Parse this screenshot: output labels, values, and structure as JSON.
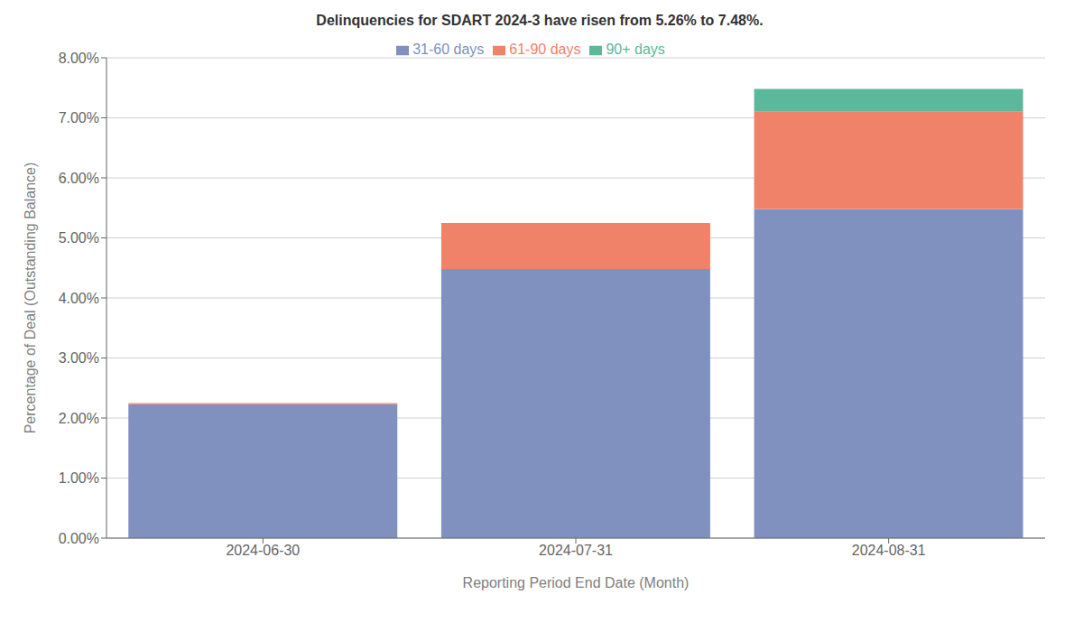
{
  "chart_data": {
    "type": "bar",
    "stacked": true,
    "title": "Delinquencies for SDART 2024-3 have risen from 5.26% to 7.48%.",
    "xlabel": "Reporting Period End Date (Month)",
    "ylabel": "Percentage of Deal (Outstanding Balance)",
    "categories": [
      "2024-06-30",
      "2024-07-31",
      "2024-08-31"
    ],
    "series": [
      {
        "name": "31-60 days",
        "color": "#8091c0",
        "values": [
          2.23,
          4.48,
          5.48
        ]
      },
      {
        "name": "61-90 days",
        "color": "#f0826a",
        "values": [
          0.02,
          0.77,
          1.62
        ]
      },
      {
        "name": "90+ days",
        "color": "#5bb89a",
        "values": [
          0.0,
          0.0,
          0.38
        ]
      }
    ],
    "ylim": [
      0,
      8.0
    ],
    "yticks": [
      {
        "value": 0,
        "label": "0.00%"
      },
      {
        "value": 1.0,
        "label": "1.00%"
      },
      {
        "value": 2.0,
        "label": "2.00%"
      },
      {
        "value": 3.0,
        "label": "3.00%"
      },
      {
        "value": 4.0,
        "label": "4.00%"
      },
      {
        "value": 5.0,
        "label": "5.00%"
      },
      {
        "value": 6.0,
        "label": "6.00%"
      },
      {
        "value": 7.0,
        "label": "7.00%"
      },
      {
        "value": 8.0,
        "label": "8.00%"
      }
    ],
    "grid": true,
    "legend": "top"
  }
}
